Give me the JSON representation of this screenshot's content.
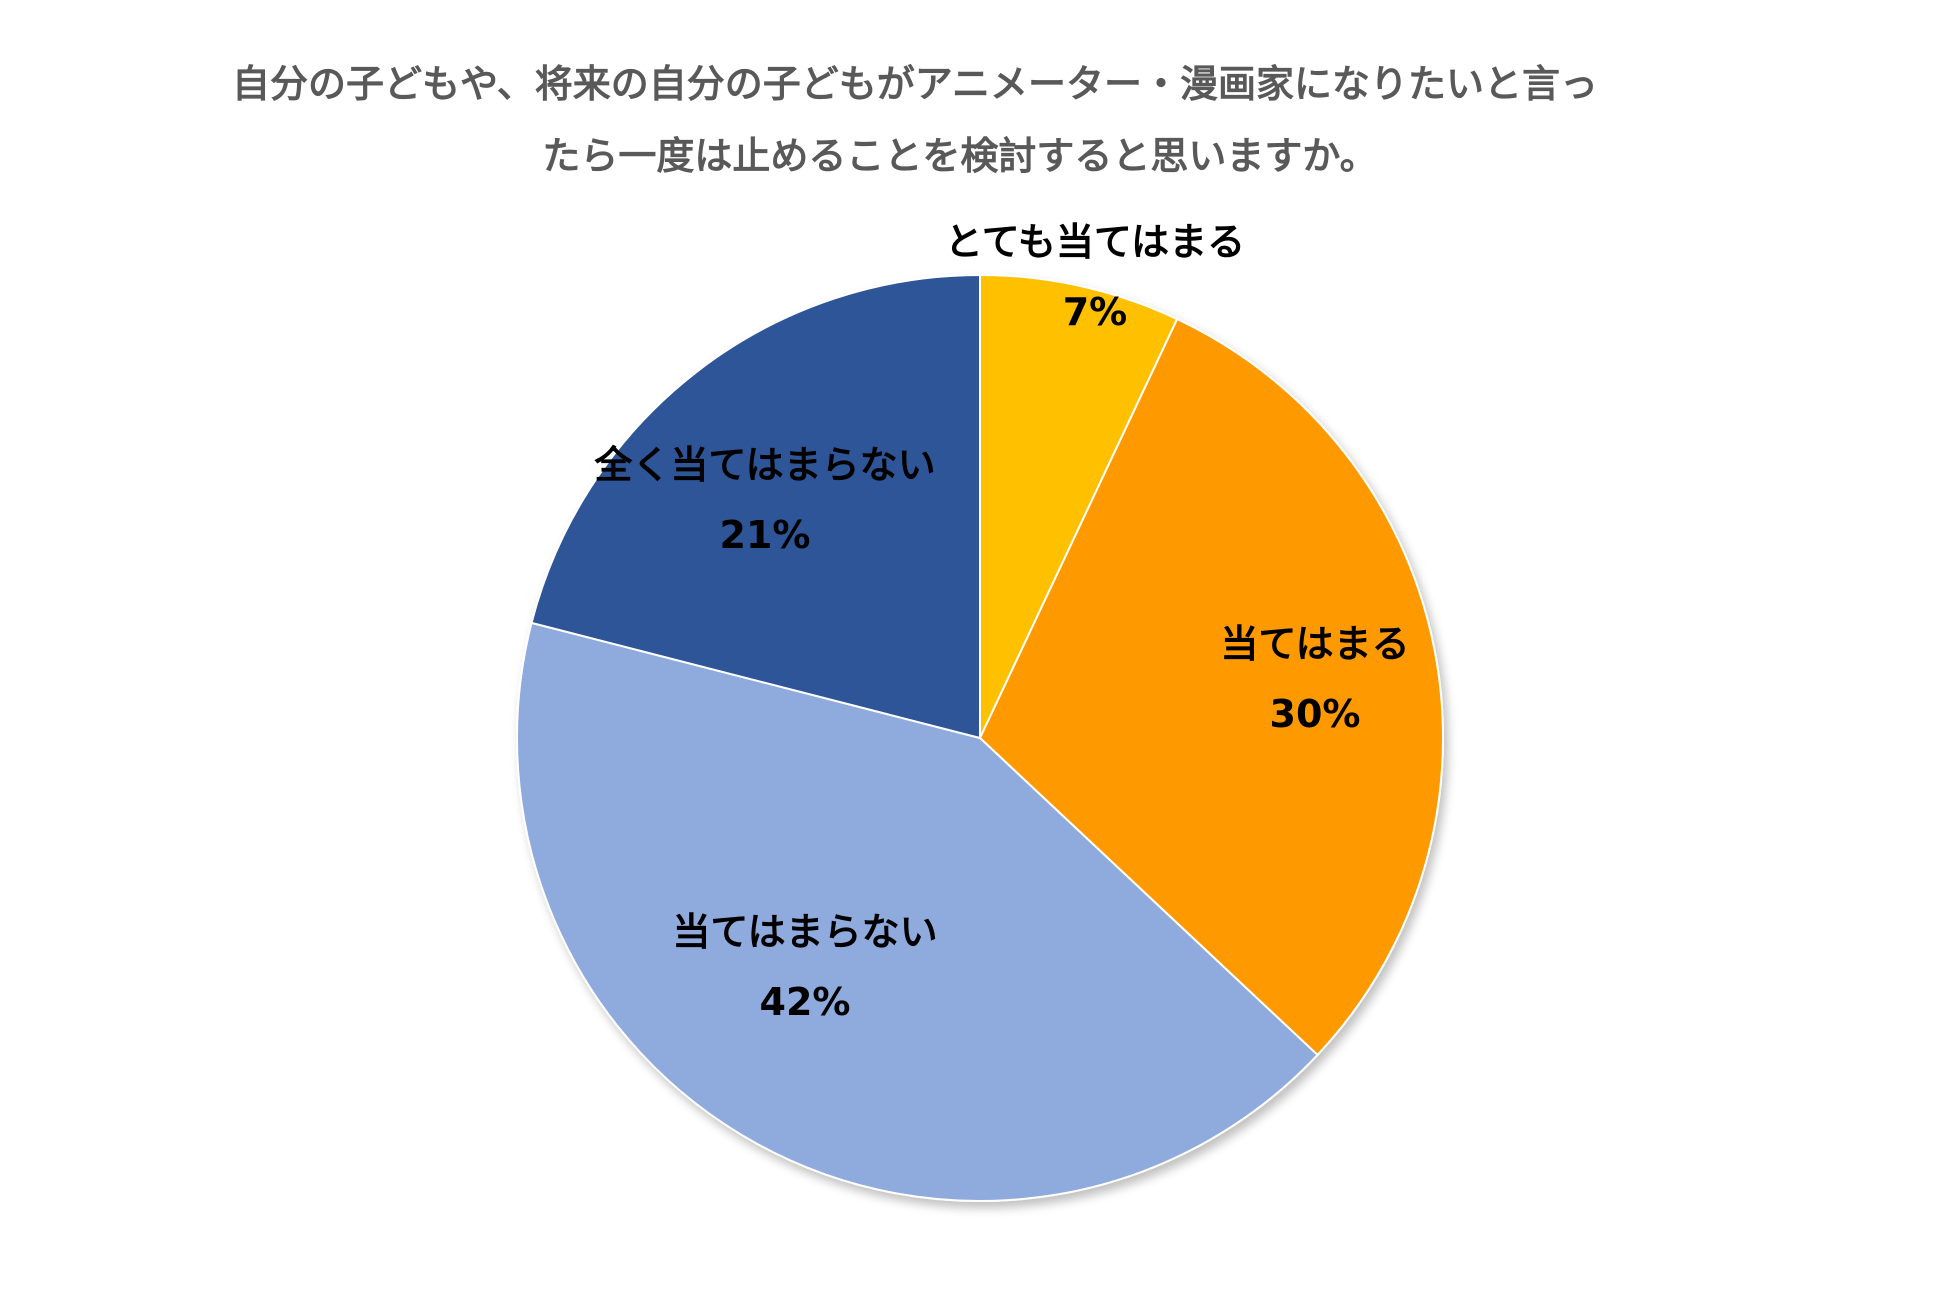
{
  "chart_data": {
    "type": "pie",
    "title_lines": [
      "自分の子どもや、将来の自分の子どもがアニメーター・漫画家になりたいと言っ",
      "たら一度は止めることを検討すると思いますか。"
    ],
    "slices": [
      {
        "label": "とても当てはまる",
        "value": 7,
        "value_label": "7%",
        "color": "#FFC000"
      },
      {
        "label": "当てはまる",
        "value": 30,
        "value_label": "30%",
        "color": "#FF9900"
      },
      {
        "label": "当てはまらない",
        "value": 42,
        "value_label": "42%",
        "color": "#8FAADC"
      },
      {
        "label": "全く当てはまらない",
        "value": 21,
        "value_label": "21%",
        "color": "#2F5597"
      }
    ],
    "start_angle": "12 o'clock",
    "direction": "clockwise",
    "legend": "none",
    "data_labels": "category name and percentage"
  }
}
